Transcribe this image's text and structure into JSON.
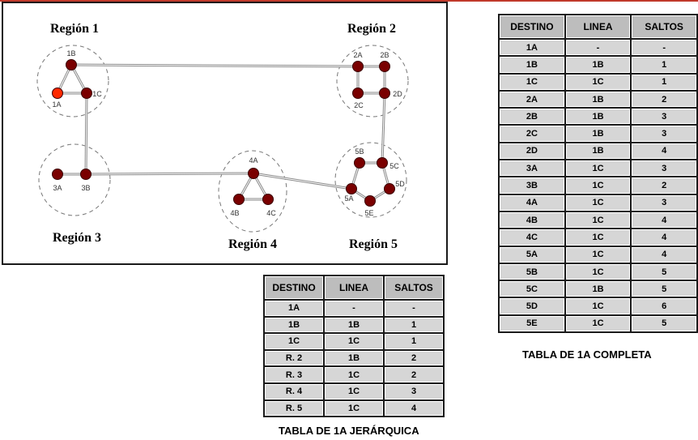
{
  "regions": [
    {
      "id": "r1",
      "label": "Región 1"
    },
    {
      "id": "r2",
      "label": "Región 2"
    },
    {
      "id": "r3",
      "label": "Región 3"
    },
    {
      "id": "r4",
      "label": "Región 4"
    },
    {
      "id": "r5",
      "label": "Región 5"
    }
  ],
  "nodes": [
    {
      "id": "1A",
      "label": "1A",
      "highlight": true
    },
    {
      "id": "1B",
      "label": "1B"
    },
    {
      "id": "1C",
      "label": "1C"
    },
    {
      "id": "2A",
      "label": "2A"
    },
    {
      "id": "2B",
      "label": "2B"
    },
    {
      "id": "2C",
      "label": "2C"
    },
    {
      "id": "2D",
      "label": "2D"
    },
    {
      "id": "3A",
      "label": "3A"
    },
    {
      "id": "3B",
      "label": "3B"
    },
    {
      "id": "4A",
      "label": "4A"
    },
    {
      "id": "4B",
      "label": "4B"
    },
    {
      "id": "4C",
      "label": "4C"
    },
    {
      "id": "5A",
      "label": "5A"
    },
    {
      "id": "5B",
      "label": "5B"
    },
    {
      "id": "5C",
      "label": "5C"
    },
    {
      "id": "5D",
      "label": "5D"
    },
    {
      "id": "5E",
      "label": "5E"
    }
  ],
  "links": [
    [
      "1A",
      "1B"
    ],
    [
      "1A",
      "1C"
    ],
    [
      "1B",
      "1C"
    ],
    [
      "1B",
      "2A"
    ],
    [
      "1C",
      "3B"
    ],
    [
      "2A",
      "2B"
    ],
    [
      "2A",
      "2C"
    ],
    [
      "2B",
      "2D"
    ],
    [
      "2C",
      "2D"
    ],
    [
      "2D",
      "5C"
    ],
    [
      "3A",
      "3B"
    ],
    [
      "3B",
      "4A"
    ],
    [
      "4A",
      "4B"
    ],
    [
      "4A",
      "4C"
    ],
    [
      "4B",
      "4C"
    ],
    [
      "4A",
      "5A"
    ],
    [
      "5A",
      "5B"
    ],
    [
      "5B",
      "5C"
    ],
    [
      "5C",
      "5D"
    ],
    [
      "5D",
      "5E"
    ],
    [
      "5E",
      "5A"
    ]
  ],
  "colors": {
    "node": "#7a0000",
    "node_highlight": "#ff2a00",
    "link": "#8a8a8a",
    "accent_line": "#c0392b"
  },
  "full_table": {
    "headers": [
      "DESTINO",
      "LINEA",
      "SALTOS"
    ],
    "rows": [
      [
        "1A",
        "-",
        "-"
      ],
      [
        "1B",
        "1B",
        "1"
      ],
      [
        "1C",
        "1C",
        "1"
      ],
      [
        "2A",
        "1B",
        "2"
      ],
      [
        "2B",
        "1B",
        "3"
      ],
      [
        "2C",
        "1B",
        "3"
      ],
      [
        "2D",
        "1B",
        "4"
      ],
      [
        "3A",
        "1C",
        "3"
      ],
      [
        "3B",
        "1C",
        "2"
      ],
      [
        "4A",
        "1C",
        "3"
      ],
      [
        "4B",
        "1C",
        "4"
      ],
      [
        "4C",
        "1C",
        "4"
      ],
      [
        "5A",
        "1C",
        "4"
      ],
      [
        "5B",
        "1C",
        "5"
      ],
      [
        "5C",
        "1B",
        "5"
      ],
      [
        "5D",
        "1C",
        "6"
      ],
      [
        "5E",
        "1C",
        "5"
      ]
    ],
    "caption": "TABLA DE 1A COMPLETA"
  },
  "hier_table": {
    "headers": [
      "DESTINO",
      "LINEA",
      "SALTOS"
    ],
    "rows": [
      [
        "1A",
        "-",
        "-"
      ],
      [
        "1B",
        "1B",
        "1"
      ],
      [
        "1C",
        "1C",
        "1"
      ],
      [
        "R. 2",
        "1B",
        "2"
      ],
      [
        "R. 3",
        "1C",
        "2"
      ],
      [
        "R. 4",
        "1C",
        "3"
      ],
      [
        "R. 5",
        "1C",
        "4"
      ]
    ],
    "caption": "TABLA DE 1A JERÁRQUICA"
  }
}
